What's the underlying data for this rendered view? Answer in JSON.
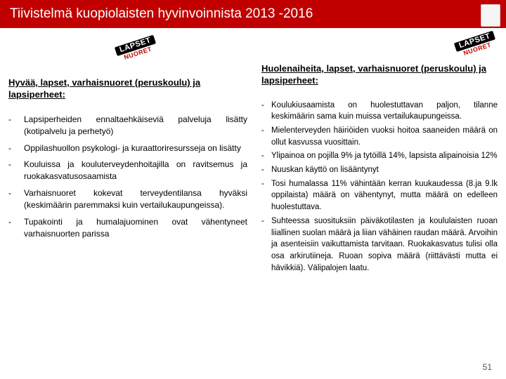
{
  "header": {
    "title": "Tiivistelmä kuopiolaisten hyvinvoinnista 2013 -2016"
  },
  "stamp": {
    "top": "LAPSET",
    "bottom": "NUORET"
  },
  "left": {
    "heading": "Hyvää, lapset, varhaisnuoret (peruskoulu) ja lapsiperheet:",
    "items": [
      "Lapsiperheiden ennaltaehkäiseviä palveluja lisätty (kotipalvelu ja perhetyö)",
      "Oppilashuollon psykologi- ja kuraattoriresursseja on lisätty",
      "Kouluissa ja kouluterveydenhoitajilla on ravitsemus ja ruokakasvatusosaamista",
      "Varhaisnuoret kokevat terveydentilansa hyväksi (keskimäärin paremmaksi kuin vertailukaupungeissa).",
      "Tupakointi ja humalajuominen ovat vähentyneet varhaisnuorten parissa"
    ]
  },
  "right": {
    "heading": "Huolenaiheita, lapset, varhaisnuoret (peruskoulu) ja lapsiperheet:",
    "items": [
      "Koulukiusaamista on huolestuttavan paljon, tilanne keskimäärin sama kuin muissa vertailukaupungeissa.",
      "Mielenterveyden häiriöiden vuoksi hoitoa saaneiden määrä on ollut kasvussa vuosittain.",
      "Ylipainoa on pojilla 9% ja tytöillä 14%, lapsista alipainoisia 12%",
      "Nuuskan käyttö on lisääntynyt",
      "Tosi humalassa 11% vähintään kerran kuukaudessa (8.ja 9.lk oppilaista) määrä on vähentynyt, mutta määrä on edelleen huolestuttava.",
      "Suhteessa suosituksiin päiväkotilasten ja koululaisten ruoan liiallinen suolan määrä ja liian vähäinen raudan määrä. Arvoihin ja asenteisiin vaikuttamista tarvitaan. Ruokakasvatus tulisi olla osa arkirutiineja. Ruoan sopiva määrä (riittävästi mutta ei hävikkiä). Välipalojen laatu."
    ]
  },
  "pageNumber": "51"
}
